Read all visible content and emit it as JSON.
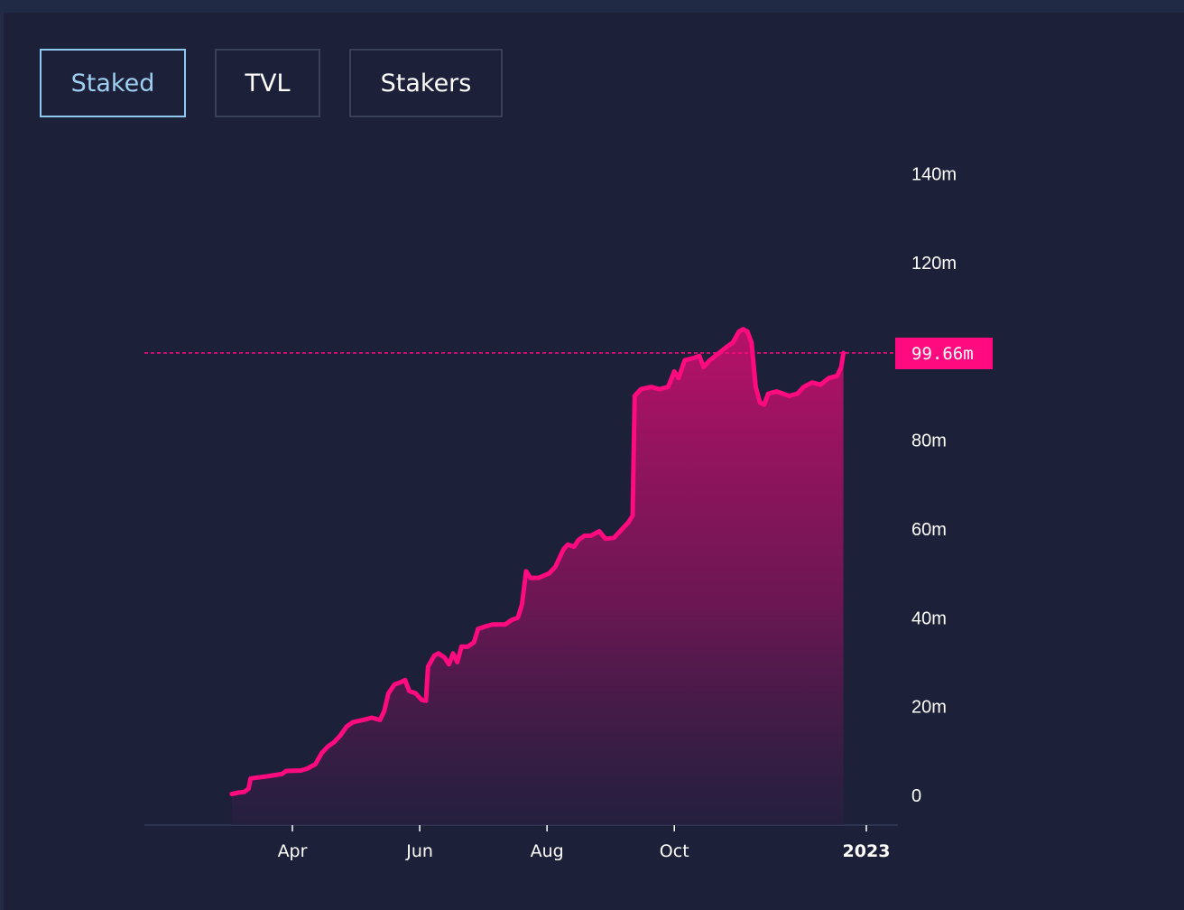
{
  "tabs": [
    {
      "label": "Staked",
      "active": true
    },
    {
      "label": "TVL",
      "active": false
    },
    {
      "label": "Stakers",
      "active": false
    }
  ],
  "colors": {
    "line": "#ff0a7f",
    "background": "#1c2038",
    "axis": "#2e3550",
    "active_tab": "#9fd0f2"
  },
  "chart_data": {
    "type": "area",
    "title": "",
    "xlabel": "",
    "ylabel": "",
    "y_unit": "m",
    "ylim": [
      0,
      140
    ],
    "yticks": [
      {
        "value": 0,
        "label": "0"
      },
      {
        "value": 20,
        "label": "20m"
      },
      {
        "value": 40,
        "label": "40m"
      },
      {
        "value": 60,
        "label": "60m"
      },
      {
        "value": 80,
        "label": "80m"
      },
      {
        "value": 99.66,
        "label": "99.66m",
        "current": true
      },
      {
        "value": 120,
        "label": "120m"
      },
      {
        "value": 140,
        "label": "140m"
      }
    ],
    "xlim": [
      "2022-02-01",
      "2023-01-15"
    ],
    "xticks": [
      {
        "date": "2022-04-01",
        "label": "Apr",
        "bold": false
      },
      {
        "date": "2022-06-01",
        "label": "Jun",
        "bold": false
      },
      {
        "date": "2022-08-01",
        "label": "Aug",
        "bold": false
      },
      {
        "date": "2022-10-01",
        "label": "Oct",
        "bold": false
      },
      {
        "date": "2023-01-01",
        "label": "2023",
        "bold": true
      }
    ],
    "current_value": 99.66,
    "current_label": "99.66m",
    "series": [
      {
        "name": "Staked",
        "points": [
          [
            "2022-03-03",
            0.3
          ],
          [
            "2022-03-06",
            0.6
          ],
          [
            "2022-03-09",
            0.8
          ],
          [
            "2022-03-11",
            1.5
          ],
          [
            "2022-03-12",
            3.8
          ],
          [
            "2022-03-20",
            4.3
          ],
          [
            "2022-03-27",
            4.8
          ],
          [
            "2022-03-29",
            5.5
          ],
          [
            "2022-04-05",
            5.6
          ],
          [
            "2022-04-08",
            6.0
          ],
          [
            "2022-04-12",
            7.0
          ],
          [
            "2022-04-15",
            9.5
          ],
          [
            "2022-04-18",
            11.0
          ],
          [
            "2022-04-21",
            12.0
          ],
          [
            "2022-04-24",
            13.5
          ],
          [
            "2022-04-27",
            15.5
          ],
          [
            "2022-04-30",
            16.5
          ],
          [
            "2022-05-05",
            17.0
          ],
          [
            "2022-05-09",
            17.5
          ],
          [
            "2022-05-13",
            17.0
          ],
          [
            "2022-05-15",
            19.0
          ],
          [
            "2022-05-17",
            23.0
          ],
          [
            "2022-05-20",
            25.0
          ],
          [
            "2022-05-23",
            25.5
          ],
          [
            "2022-05-25",
            26.0
          ],
          [
            "2022-05-27",
            23.5
          ],
          [
            "2022-05-30",
            23.0
          ],
          [
            "2022-06-02",
            21.5
          ],
          [
            "2022-06-04",
            21.3
          ],
          [
            "2022-06-05",
            29.0
          ],
          [
            "2022-06-08",
            31.5
          ],
          [
            "2022-06-10",
            32.0
          ],
          [
            "2022-06-13",
            31.0
          ],
          [
            "2022-06-15",
            29.5
          ],
          [
            "2022-06-17",
            32.0
          ],
          [
            "2022-06-19",
            30.0
          ],
          [
            "2022-06-21",
            33.5
          ],
          [
            "2022-06-24",
            33.5
          ],
          [
            "2022-06-27",
            34.5
          ],
          [
            "2022-06-29",
            37.5
          ],
          [
            "2022-07-02",
            38.0
          ],
          [
            "2022-07-06",
            38.5
          ],
          [
            "2022-07-12",
            38.5
          ],
          [
            "2022-07-15",
            39.5
          ],
          [
            "2022-07-18",
            40.0
          ],
          [
            "2022-07-20",
            43.0
          ],
          [
            "2022-07-22",
            50.5
          ],
          [
            "2022-07-24",
            49.0
          ],
          [
            "2022-07-28",
            49.0
          ],
          [
            "2022-08-02",
            50.0
          ],
          [
            "2022-08-05",
            51.5
          ],
          [
            "2022-08-07",
            53.5
          ],
          [
            "2022-08-09",
            55.5
          ],
          [
            "2022-08-11",
            56.5
          ],
          [
            "2022-08-14",
            56.0
          ],
          [
            "2022-08-16",
            57.5
          ],
          [
            "2022-08-19",
            58.5
          ],
          [
            "2022-08-22",
            58.5
          ],
          [
            "2022-08-26",
            59.5
          ],
          [
            "2022-08-29",
            57.8
          ],
          [
            "2022-09-02",
            58.0
          ],
          [
            "2022-09-06",
            60.0
          ],
          [
            "2022-09-09",
            61.5
          ],
          [
            "2022-09-11",
            63.0
          ],
          [
            "2022-09-12",
            90.0
          ],
          [
            "2022-09-15",
            91.5
          ],
          [
            "2022-09-20",
            92.0
          ],
          [
            "2022-09-24",
            91.5
          ],
          [
            "2022-09-28",
            92.0
          ],
          [
            "2022-10-01",
            95.5
          ],
          [
            "2022-10-03",
            94.0
          ],
          [
            "2022-10-06",
            98.0
          ],
          [
            "2022-10-10",
            98.5
          ],
          [
            "2022-10-13",
            99.0
          ],
          [
            "2022-10-15",
            96.5
          ],
          [
            "2022-10-18",
            98.0
          ],
          [
            "2022-10-22",
            99.5
          ],
          [
            "2022-10-26",
            101.0
          ],
          [
            "2022-10-29",
            102.0
          ],
          [
            "2022-11-01",
            104.5
          ],
          [
            "2022-11-03",
            105.0
          ],
          [
            "2022-11-05",
            104.5
          ],
          [
            "2022-11-07",
            102.0
          ],
          [
            "2022-11-09",
            92.0
          ],
          [
            "2022-11-11",
            88.5
          ],
          [
            "2022-11-13",
            88.0
          ],
          [
            "2022-11-15",
            90.5
          ],
          [
            "2022-11-19",
            91.0
          ],
          [
            "2022-11-22",
            90.5
          ],
          [
            "2022-11-25",
            90.0
          ],
          [
            "2022-11-29",
            90.5
          ],
          [
            "2022-12-02",
            92.0
          ],
          [
            "2022-12-06",
            93.0
          ],
          [
            "2022-12-10",
            92.5
          ],
          [
            "2022-12-14",
            94.0
          ],
          [
            "2022-12-18",
            94.5
          ],
          [
            "2022-12-20",
            96.5
          ],
          [
            "2022-12-21",
            99.66
          ]
        ]
      }
    ]
  }
}
